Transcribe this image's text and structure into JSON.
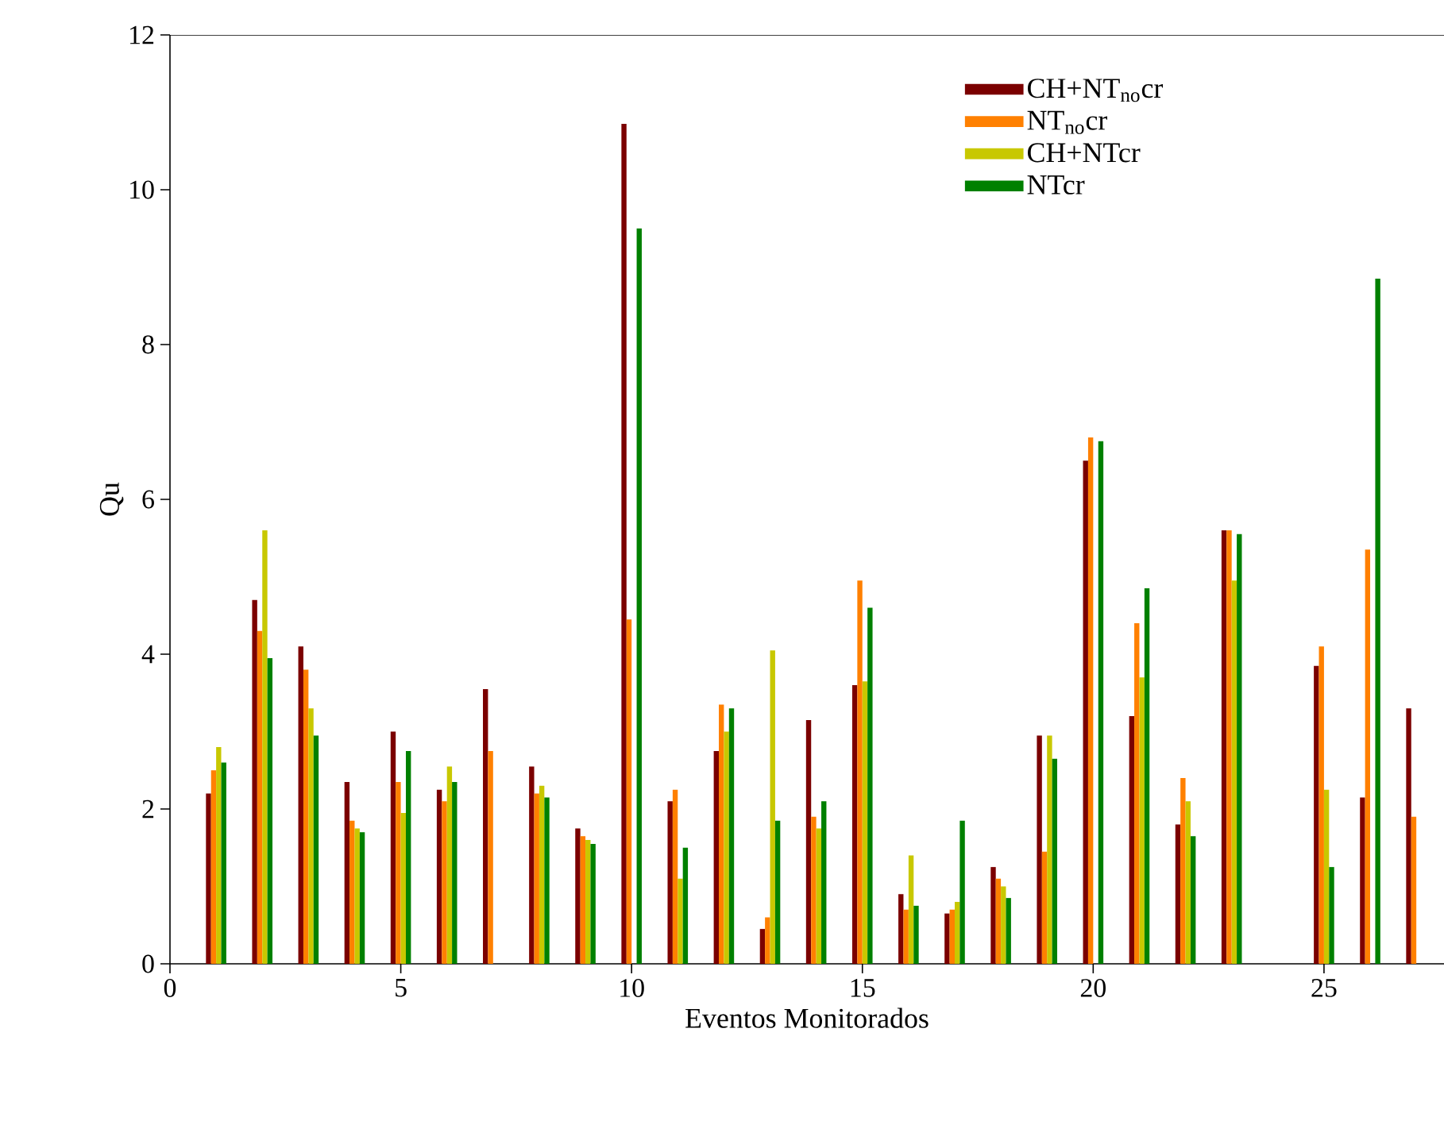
{
  "chart_data": {
    "type": "bar",
    "xlabel": "Eventos Monitorados",
    "ylabel": "Qu",
    "x": [
      1,
      2,
      3,
      4,
      5,
      6,
      7,
      8,
      9,
      10,
      11,
      12,
      13,
      14,
      15,
      16,
      17,
      18,
      19,
      20,
      21,
      22,
      23,
      24,
      25,
      26,
      27
    ],
    "series": [
      {
        "name": "CH+NT$_{no}$cr",
        "color": "#7b0000",
        "values": [
          2.2,
          4.7,
          4.1,
          2.35,
          3.0,
          2.25,
          3.55,
          2.55,
          1.75,
          10.85,
          2.1,
          2.75,
          0.45,
          3.15,
          3.6,
          0.9,
          0.65,
          1.25,
          2.95,
          6.5,
          3.2,
          1.8,
          5.6,
          null,
          3.85,
          2.15,
          3.3
        ]
      },
      {
        "name": "NT$_{no}$cr",
        "color": "#ff8000",
        "values": [
          2.5,
          4.3,
          3.8,
          1.85,
          2.35,
          2.1,
          2.75,
          2.2,
          1.65,
          4.45,
          2.25,
          3.35,
          0.6,
          1.9,
          4.95,
          0.7,
          0.7,
          1.1,
          1.45,
          6.8,
          4.4,
          2.4,
          5.6,
          null,
          4.1,
          5.35,
          1.9
        ]
      },
      {
        "name": "CH+NTcr",
        "color": "#c8c800",
        "values": [
          2.8,
          5.6,
          3.3,
          1.75,
          1.95,
          2.55,
          null,
          2.3,
          1.6,
          null,
          1.1,
          3.0,
          4.05,
          1.75,
          3.65,
          1.4,
          0.8,
          1.0,
          2.95,
          null,
          3.7,
          2.1,
          4.95,
          null,
          2.25,
          null,
          null
        ]
      },
      {
        "name": "NTcr",
        "color": "#008000",
        "values": [
          2.6,
          3.95,
          2.95,
          1.7,
          2.75,
          2.35,
          null,
          2.15,
          1.55,
          9.5,
          1.5,
          3.3,
          1.85,
          2.1,
          4.6,
          0.75,
          1.85,
          0.85,
          2.65,
          6.75,
          4.85,
          1.65,
          5.55,
          null,
          1.25,
          8.85,
          null
        ]
      }
    ],
    "xlim": [
      0,
      27.6
    ],
    "ylim": [
      0,
      12
    ],
    "xticks": [
      0,
      5,
      10,
      15,
      20,
      25
    ],
    "yticks": [
      0,
      2,
      4,
      6,
      8,
      10,
      12
    ],
    "legend": "top right"
  }
}
